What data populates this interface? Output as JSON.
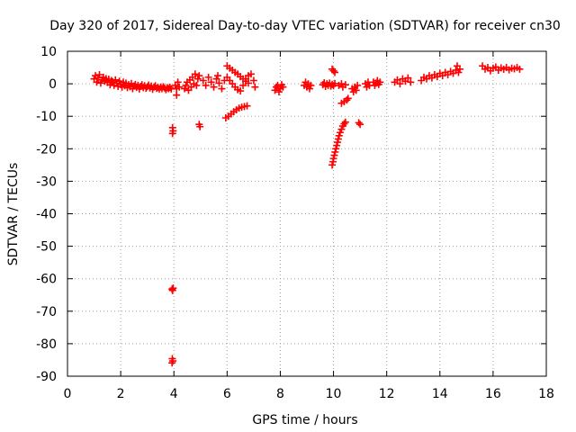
{
  "chart_data": {
    "type": "scatter",
    "title": "Day 320 of 2017, Sidereal Day-to-day VTEC variation (SDTVAR) for receiver cn30",
    "xlabel": "GPS time / hours",
    "ylabel": "SDTVAR / TECUs",
    "xlim": [
      0,
      18
    ],
    "ylim": [
      -90,
      10
    ],
    "xticks": [
      0,
      2,
      4,
      6,
      8,
      10,
      12,
      14,
      16,
      18
    ],
    "yticks": [
      10,
      0,
      -10,
      -20,
      -30,
      -40,
      -50,
      -60,
      -70,
      -80,
      -90
    ],
    "grid": true,
    "marker": "+",
    "color": "#ff0000",
    "series": [
      {
        "name": "SDTVAR",
        "points": [
          [
            1.0,
            1.5
          ],
          [
            1.05,
            2.5
          ],
          [
            1.1,
            0.5
          ],
          [
            1.15,
            1.8
          ],
          [
            1.2,
            2.8
          ],
          [
            1.25,
            0.2
          ],
          [
            1.3,
            1.2
          ],
          [
            1.35,
            2.0
          ],
          [
            1.4,
            0.8
          ],
          [
            1.45,
            1.6
          ],
          [
            1.5,
            0.4
          ],
          [
            1.55,
            1.4
          ],
          [
            1.6,
            -0.3
          ],
          [
            1.65,
            1.0
          ],
          [
            1.7,
            0.6
          ],
          [
            1.75,
            -0.5
          ],
          [
            1.8,
            1.2
          ],
          [
            1.85,
            0.2
          ],
          [
            1.9,
            -0.8
          ],
          [
            1.95,
            0.8
          ],
          [
            2.0,
            -0.2
          ],
          [
            2.05,
            -1.0
          ],
          [
            2.1,
            0.5
          ],
          [
            2.15,
            -0.6
          ],
          [
            2.2,
            0.2
          ],
          [
            2.25,
            -1.2
          ],
          [
            2.3,
            -0.3
          ],
          [
            2.35,
            -0.9
          ],
          [
            2.4,
            0.1
          ],
          [
            2.45,
            -1.5
          ],
          [
            2.5,
            -0.7
          ],
          [
            2.55,
            -0.2
          ],
          [
            2.6,
            -1.1
          ],
          [
            2.65,
            -0.5
          ],
          [
            2.7,
            -1.6
          ],
          [
            2.75,
            -0.8
          ],
          [
            2.8,
            -0.3
          ],
          [
            2.85,
            -1.2
          ],
          [
            2.9,
            -0.6
          ],
          [
            2.95,
            -1.4
          ],
          [
            3.0,
            -0.9
          ],
          [
            3.05,
            -0.4
          ],
          [
            3.1,
            -1.3
          ],
          [
            3.15,
            -0.7
          ],
          [
            3.2,
            -1.7
          ],
          [
            3.25,
            -1.0
          ],
          [
            3.3,
            -0.6
          ],
          [
            3.35,
            -1.4
          ],
          [
            3.4,
            -1.1
          ],
          [
            3.45,
            -1.6
          ],
          [
            3.5,
            -1.0
          ],
          [
            3.55,
            -1.5
          ],
          [
            3.6,
            -0.9
          ],
          [
            3.65,
            -1.3
          ],
          [
            3.7,
            -1.8
          ],
          [
            3.75,
            -1.2
          ],
          [
            3.8,
            -1.5
          ],
          [
            3.85,
            -1.1
          ],
          [
            3.9,
            -1.6
          ],
          [
            3.95,
            -13.5
          ],
          [
            3.97,
            -14.5
          ],
          [
            3.95,
            -15.3
          ],
          [
            3.93,
            -63.2
          ],
          [
            3.95,
            -63.6
          ],
          [
            3.97,
            -62.9
          ],
          [
            3.94,
            -84.6
          ],
          [
            3.96,
            -85.3
          ],
          [
            3.93,
            -85.9
          ],
          [
            4.05,
            -0.5
          ],
          [
            4.1,
            -1.5
          ],
          [
            4.1,
            -3.5
          ],
          [
            4.15,
            0.5
          ],
          [
            4.2,
            -1.0
          ],
          [
            4.4,
            -1.5
          ],
          [
            4.45,
            -0.5
          ],
          [
            4.5,
            0.5
          ],
          [
            4.55,
            -2.0
          ],
          [
            4.6,
            1.2
          ],
          [
            4.65,
            -1.0
          ],
          [
            4.7,
            2.0
          ],
          [
            4.75,
            0.0
          ],
          [
            4.8,
            3.0
          ],
          [
            4.85,
            -0.5
          ],
          [
            4.9,
            1.5
          ],
          [
            4.95,
            2.5
          ],
          [
            4.95,
            -12.5
          ],
          [
            4.98,
            -13.2
          ],
          [
            5.1,
            1.0
          ],
          [
            5.2,
            -0.5
          ],
          [
            5.3,
            2.0
          ],
          [
            5.4,
            0.5
          ],
          [
            5.5,
            -1.0
          ],
          [
            5.6,
            1.5
          ],
          [
            5.65,
            2.5
          ],
          [
            5.7,
            0.2
          ],
          [
            5.8,
            -1.5
          ],
          [
            5.9,
            1.0
          ],
          [
            6.0,
            5.5
          ],
          [
            6.1,
            4.8
          ],
          [
            6.2,
            4.2
          ],
          [
            6.3,
            3.5
          ],
          [
            6.4,
            3.0
          ],
          [
            6.5,
            2.2
          ],
          [
            6.6,
            1.5
          ],
          [
            6.7,
            0.8
          ],
          [
            6.8,
            0.2
          ],
          [
            6.0,
            2.0
          ],
          [
            6.1,
            1.0
          ],
          [
            6.2,
            0.0
          ],
          [
            6.3,
            -1.0
          ],
          [
            6.4,
            -1.8
          ],
          [
            6.5,
            -2.2
          ],
          [
            6.6,
            -0.5
          ],
          [
            6.7,
            1.5
          ],
          [
            6.8,
            2.5
          ],
          [
            6.9,
            3.0
          ],
          [
            7.0,
            1.0
          ],
          [
            7.05,
            -1.0
          ],
          [
            5.95,
            -10.5
          ],
          [
            6.05,
            -10.0
          ],
          [
            6.15,
            -9.3
          ],
          [
            6.25,
            -8.6
          ],
          [
            6.35,
            -8.0
          ],
          [
            6.45,
            -7.5
          ],
          [
            6.55,
            -7.2
          ],
          [
            6.65,
            -7.0
          ],
          [
            6.75,
            -6.8
          ],
          [
            7.8,
            -2.0
          ],
          [
            7.85,
            -1.0
          ],
          [
            7.9,
            -0.5
          ],
          [
            7.95,
            -2.5
          ],
          [
            8.0,
            -1.5
          ],
          [
            8.05,
            -0.3
          ],
          [
            8.1,
            -1.0
          ],
          [
            8.9,
            -0.5
          ],
          [
            8.95,
            0.5
          ],
          [
            9.0,
            -1.0
          ],
          [
            9.05,
            0.0
          ],
          [
            9.1,
            -1.5
          ],
          [
            9.15,
            -0.5
          ],
          [
            9.6,
            -0.3
          ],
          [
            9.65,
            0.3
          ],
          [
            9.7,
            -0.8
          ],
          [
            9.75,
            0.0
          ],
          [
            9.8,
            -0.5
          ],
          [
            9.85,
            0.2
          ],
          [
            9.9,
            -0.7
          ],
          [
            9.95,
            -0.2
          ],
          [
            10.0,
            -0.6
          ],
          [
            10.05,
            0.1
          ],
          [
            9.95,
            4.5
          ],
          [
            10.0,
            4.0
          ],
          [
            10.05,
            3.5
          ],
          [
            9.95,
            -25.0
          ],
          [
            9.98,
            -24.0
          ],
          [
            10.0,
            -23.0
          ],
          [
            10.03,
            -22.0
          ],
          [
            10.06,
            -21.0
          ],
          [
            10.09,
            -20.0
          ],
          [
            10.12,
            -19.0
          ],
          [
            10.15,
            -18.0
          ],
          [
            10.18,
            -17.0
          ],
          [
            10.21,
            -16.0
          ],
          [
            10.25,
            -15.0
          ],
          [
            10.3,
            -14.0
          ],
          [
            10.35,
            -13.0
          ],
          [
            10.4,
            -12.3
          ],
          [
            10.45,
            -11.8
          ],
          [
            10.3,
            -6.0
          ],
          [
            10.4,
            -5.5
          ],
          [
            10.5,
            -5.0
          ],
          [
            10.55,
            -4.5
          ],
          [
            10.2,
            -0.5
          ],
          [
            10.3,
            0.0
          ],
          [
            10.35,
            -1.0
          ],
          [
            10.45,
            -0.3
          ],
          [
            10.7,
            -1.5
          ],
          [
            10.75,
            -2.5
          ],
          [
            10.8,
            -1.0
          ],
          [
            10.85,
            -2.0
          ],
          [
            10.9,
            -0.5
          ],
          [
            10.95,
            -12.0
          ],
          [
            11.0,
            -12.5
          ],
          [
            11.2,
            0.0
          ],
          [
            11.25,
            -1.0
          ],
          [
            11.3,
            0.5
          ],
          [
            11.35,
            -0.5
          ],
          [
            11.5,
            0.5
          ],
          [
            11.55,
            -0.5
          ],
          [
            11.6,
            0.2
          ],
          [
            11.65,
            1.0
          ],
          [
            11.7,
            -0.2
          ],
          [
            11.75,
            0.5
          ],
          [
            12.3,
            0.5
          ],
          [
            12.4,
            1.2
          ],
          [
            12.5,
            0.0
          ],
          [
            12.6,
            1.5
          ],
          [
            12.7,
            0.8
          ],
          [
            12.8,
            1.8
          ],
          [
            12.9,
            0.5
          ],
          [
            13.3,
            1.0
          ],
          [
            13.4,
            2.0
          ],
          [
            13.5,
            1.5
          ],
          [
            13.6,
            2.5
          ],
          [
            13.7,
            1.8
          ],
          [
            13.8,
            2.8
          ],
          [
            13.9,
            2.2
          ],
          [
            14.0,
            3.2
          ],
          [
            14.1,
            2.5
          ],
          [
            14.2,
            3.5
          ],
          [
            14.3,
            2.8
          ],
          [
            14.4,
            3.8
          ],
          [
            14.5,
            3.2
          ],
          [
            14.6,
            4.2
          ],
          [
            14.65,
            5.5
          ],
          [
            14.7,
            3.5
          ],
          [
            14.75,
            4.5
          ],
          [
            15.6,
            5.5
          ],
          [
            15.7,
            4.5
          ],
          [
            15.8,
            5.0
          ],
          [
            15.9,
            4.0
          ],
          [
            16.0,
            4.8
          ],
          [
            16.1,
            5.2
          ],
          [
            16.2,
            4.2
          ],
          [
            16.3,
            4.9
          ],
          [
            16.4,
            4.5
          ],
          [
            16.5,
            5.0
          ],
          [
            16.6,
            4.3
          ],
          [
            16.7,
            4.8
          ],
          [
            16.8,
            4.6
          ],
          [
            16.9,
            5.0
          ],
          [
            17.0,
            4.5
          ]
        ]
      }
    ]
  }
}
